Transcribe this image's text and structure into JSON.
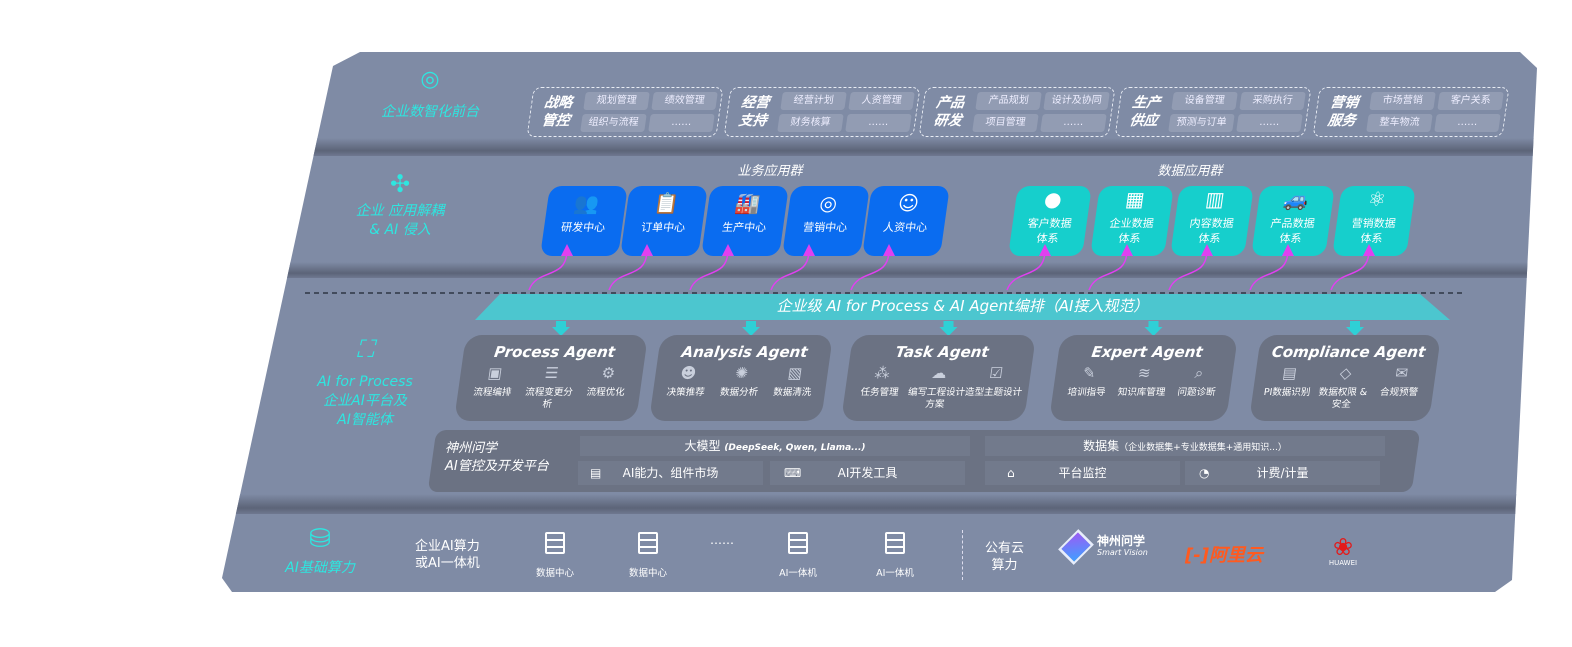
{
  "layers": {
    "front": {
      "label": "企业数智化前台",
      "icon": "brain-icon",
      "groups": [
        {
          "title": [
            "战略",
            "管控"
          ],
          "items": [
            "规划管理",
            "绩效管理",
            "组织与流程",
            "……"
          ]
        },
        {
          "title": [
            "经营",
            "支持"
          ],
          "items": [
            "经营计划",
            "人资管理",
            "财务核算",
            "……"
          ]
        },
        {
          "title": [
            "产品",
            "研发"
          ],
          "items": [
            "产品规划",
            "设计及协同",
            "项目管理",
            "……"
          ]
        },
        {
          "title": [
            "生产",
            "供应"
          ],
          "items": [
            "设备管理",
            "采购执行",
            "预测与订单",
            "……"
          ]
        },
        {
          "title": [
            "营销",
            "服务"
          ],
          "items": [
            "市场营销",
            "客户关系",
            "整车物流",
            "……"
          ]
        }
      ]
    },
    "apps": {
      "label": [
        "企业 应用解耦",
        "& AI 侵入"
      ],
      "icon": "molecule-icon",
      "business_title": "业务应用群",
      "data_title": "数据应用群",
      "business": [
        {
          "label": "研发中心",
          "icon": "users-icon"
        },
        {
          "label": "订单中心",
          "icon": "clipboard-icon"
        },
        {
          "label": "生产中心",
          "icon": "factory-icon"
        },
        {
          "label": "营销中心",
          "icon": "target-icon"
        },
        {
          "label": "人资中心",
          "icon": "person-icon"
        }
      ],
      "data": [
        {
          "label": [
            "客户数据",
            "体系"
          ],
          "icon": "user-icon"
        },
        {
          "label": [
            "企业数据",
            "体系"
          ],
          "icon": "building-icon"
        },
        {
          "label": [
            "内容数据",
            "体系"
          ],
          "icon": "books-icon"
        },
        {
          "label": [
            "产品数据",
            "体系"
          ],
          "icon": "car-icon"
        },
        {
          "label": [
            "营销数据",
            "体系"
          ],
          "icon": "atom-icon"
        }
      ]
    },
    "ai": {
      "label": [
        "AI for Process",
        "企业AI平台及",
        "AI智能体"
      ],
      "icon": "face-scan-icon",
      "banner": "企业级 AI for Process & AI Agent编排（AI接入规范）",
      "agents": [
        {
          "title": "Process Agent",
          "items": [
            "流程编排",
            "流程变更分析",
            "流程优化"
          ]
        },
        {
          "title": "Analysis Agent",
          "items": [
            "决策推荐",
            "数据分析",
            "数据清洗"
          ]
        },
        {
          "title": "Task Agent",
          "items": [
            "任务管理",
            "编写工程设计方案",
            "造型主题设计"
          ]
        },
        {
          "title": "Expert Agent",
          "items": [
            "培训指导",
            "知识库管理",
            "问题诊断"
          ]
        },
        {
          "title": "Compliance Agent",
          "items": [
            "PI数据识别",
            "数据权限 & 安全",
            "合规预警"
          ]
        }
      ],
      "platform": {
        "title": [
          "神州问学",
          "AI管控及开发平台"
        ],
        "model": "大模型",
        "model_note": "(DeepSeek, Qwen, Llama...)",
        "dataset": "数据集",
        "dataset_note": "（企业数据集+专业数据集+通用知识...）",
        "market": "AI能力、组件市场",
        "devtools": "AI开发工具",
        "monitor": "平台监控",
        "billing": "计费/计量"
      }
    },
    "infra": {
      "label": "AI基础算力",
      "icon": "database-icon",
      "private_label": [
        "企业AI算力",
        "或AI一体机"
      ],
      "servers": [
        "数据中心",
        "数据中心",
        "AI一体机",
        "AI一体机"
      ],
      "ellipsis": "……",
      "public_label": [
        "公有云",
        "算力"
      ],
      "vendors": {
        "smartvision": "神州问学",
        "smartvision_sub": "Smart Vision",
        "aliyun": "阿里云",
        "aliyun_mark": "[-]",
        "huawei": "HUAWEI"
      }
    }
  },
  "colors": {
    "board": "#7f8ba5",
    "blue": "#0a6cf0",
    "teal": "#16cfcc",
    "cyan_label": "#2ee6e0",
    "arrow": "#e040f0"
  }
}
